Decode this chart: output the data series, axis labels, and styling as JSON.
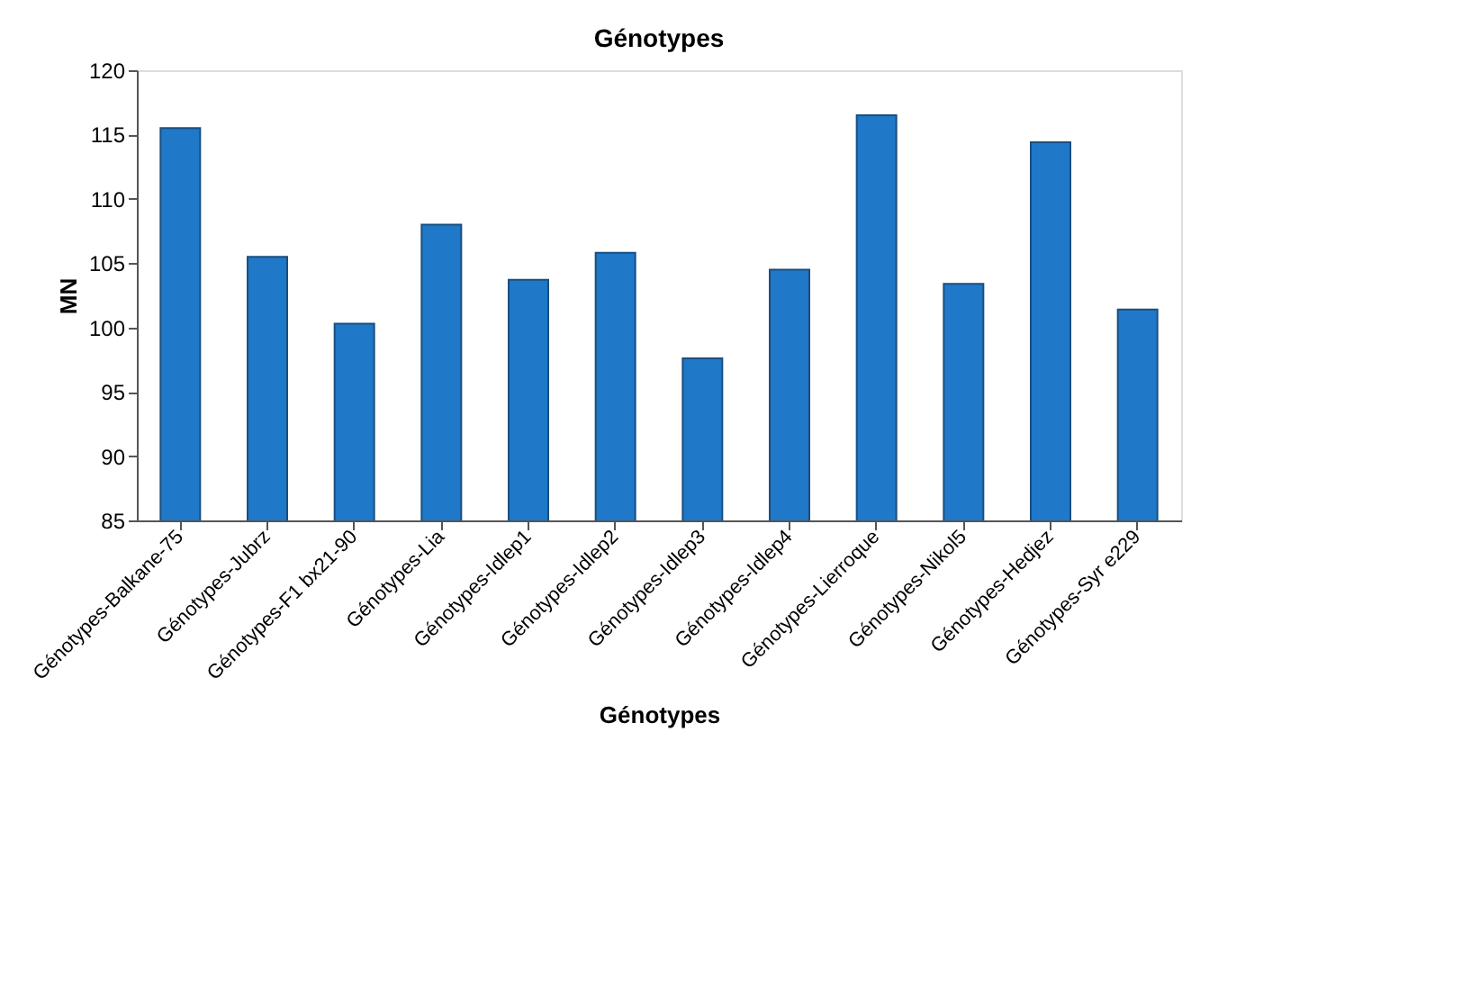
{
  "chart_data": {
    "type": "bar",
    "title": "Génotypes",
    "xlabel": "Génotypes",
    "ylabel": "MN",
    "categories": [
      "Génotypes-Balkane-75",
      "Génotypes-Jubrz",
      "Génotypes-F1 bx21-90",
      "Génotypes-Lia",
      "Génotypes-Idlep1",
      "Génotypes-Idlep2",
      "Génotypes-Idlep3",
      "Génotypes-Idlep4",
      "Génotypes-Lierroque",
      "Génotypes-Nikol5",
      "Génotypes-Hedjez",
      "Génotypes-Syr e229"
    ],
    "values": [
      115.5,
      105.5,
      100.3,
      108.0,
      103.7,
      105.8,
      97.6,
      104.5,
      116.5,
      103.4,
      114.4,
      101.4
    ],
    "color": "#1f78c8",
    "ylim": [
      85,
      120
    ],
    "yticks": [
      85,
      90,
      95,
      100,
      105,
      110,
      115,
      120
    ],
    "grid": false
  }
}
